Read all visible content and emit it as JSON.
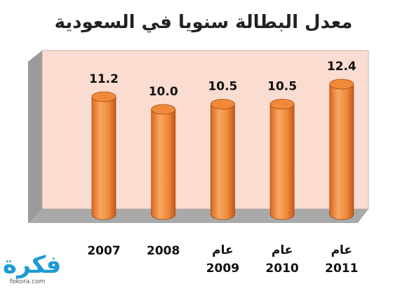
{
  "chart_data": {
    "type": "bar",
    "title": "معدل البطالة سنويا في السعودية",
    "categories": [
      "2007",
      "2008",
      "عام 2009",
      "عام 2010",
      "عام 2011"
    ],
    "values": [
      11.2,
      10.0,
      10.5,
      10.5,
      12.4
    ],
    "value_labels": [
      "11.2",
      "10.0",
      "10.5",
      "10.5",
      "12.4"
    ],
    "color": "#f08a3a"
  },
  "watermark": {
    "logo": "فكرة",
    "url": "fokora.com"
  }
}
